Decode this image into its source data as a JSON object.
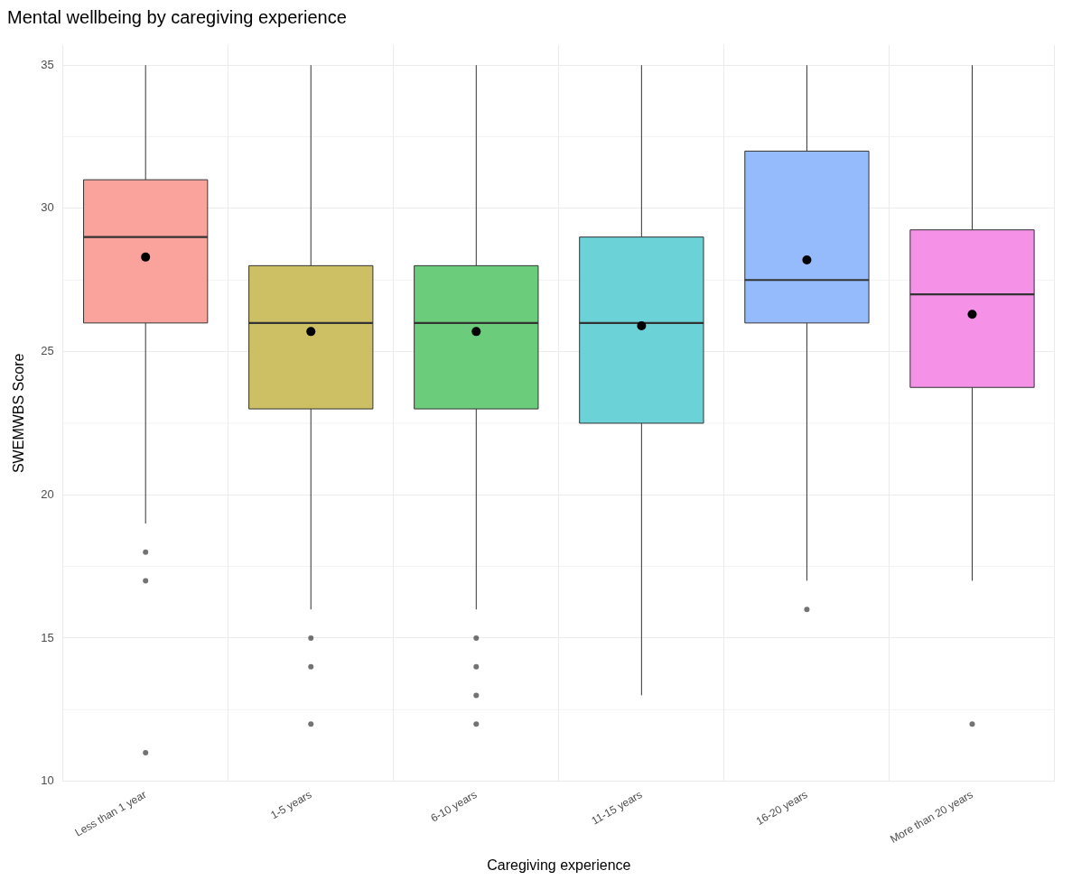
{
  "chart_data": {
    "type": "box",
    "title": "Mental wellbeing by caregiving experience",
    "xlabel": "Caregiving experience",
    "ylabel": "SWEMWBS Score",
    "categories": [
      "Less than 1 year",
      "1-5 years",
      "6-10 years",
      "11-15 years",
      "16-20 years",
      "More than 20 years"
    ],
    "colors": [
      "#f9a39c",
      "#cdbf63",
      "#6bcd7b",
      "#6bd3d8",
      "#95bbfd",
      "#f592e8"
    ],
    "boxes": [
      {
        "low": 19,
        "q1": 26,
        "median": 29,
        "q3": 31,
        "high": 35,
        "mean": 28.3,
        "outliers": [
          18,
          17,
          11
        ]
      },
      {
        "low": 16,
        "q1": 23,
        "median": 26,
        "q3": 28,
        "high": 35,
        "mean": 25.7,
        "outliers": [
          15,
          14,
          12
        ]
      },
      {
        "low": 16,
        "q1": 23,
        "median": 26,
        "q3": 28,
        "high": 35,
        "mean": 25.7,
        "outliers": [
          15,
          14,
          13,
          12
        ]
      },
      {
        "low": 13,
        "q1": 22.5,
        "median": 26,
        "q3": 29,
        "high": 35,
        "mean": 25.9
      },
      {
        "low": 17,
        "q1": 26,
        "median": 27.5,
        "q3": 32,
        "high": 35,
        "mean": 28.2,
        "outliers": [
          16
        ]
      },
      {
        "low": 17,
        "q1": 23.75,
        "median": 27,
        "q3": 29.25,
        "high": 35,
        "mean": 26.3,
        "outliers": [
          12
        ]
      }
    ],
    "ylim": [
      10,
      35.7
    ],
    "yticks": [
      10,
      15,
      20,
      25,
      30,
      35
    ],
    "grid": true,
    "legend": false
  }
}
